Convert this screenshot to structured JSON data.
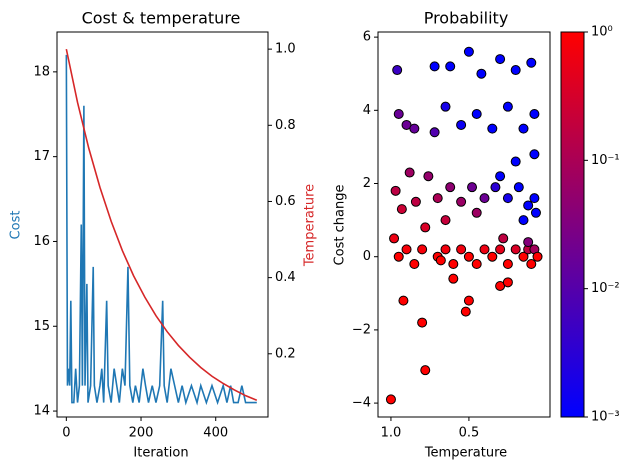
{
  "chart_data": [
    {
      "type": "line",
      "title": "Cost & temperature",
      "x_label": "Iteration",
      "y_label": "Cost",
      "y2_label": "Temperature",
      "xlim": [
        -25,
        540
      ],
      "xticks": [
        0,
        200,
        400
      ],
      "ylim": [
        13.93,
        18.47
      ],
      "yticks": [
        14,
        15,
        16,
        17,
        18
      ],
      "y2lim": [
        0.034,
        1.045
      ],
      "y2ticks": [
        0.2,
        0.4,
        0.6,
        0.8,
        {
          "value": 1,
          "label": "1.0"
        }
      ],
      "series": [
        {
          "color": "#1f77b4",
          "x": [
            0,
            3,
            6,
            9,
            12,
            15,
            20,
            25,
            30,
            35,
            40,
            43,
            47,
            50,
            55,
            58,
            65,
            72,
            75,
            82,
            90,
            95,
            100,
            108,
            112,
            120,
            128,
            135,
            142,
            150,
            157,
            165,
            170,
            178,
            185,
            195,
            205,
            212,
            220,
            230,
            240,
            250,
            258,
            262,
            270,
            280,
            290,
            300,
            310,
            320,
            335,
            350,
            360,
            375,
            390,
            405,
            420,
            430,
            440,
            448,
            460,
            470,
            480,
            510
          ],
          "values": [
            18.2,
            14.3,
            14.5,
            14.3,
            15.3,
            14.1,
            14.1,
            14.5,
            14.1,
            14.3,
            16.2,
            14.3,
            17.6,
            14.3,
            15.5,
            14.1,
            14.3,
            15.7,
            14.3,
            14.1,
            14.3,
            14.5,
            14.1,
            15.3,
            14.3,
            14.1,
            14.5,
            14.3,
            14.1,
            14.5,
            14.3,
            15.7,
            14.3,
            14.1,
            14.3,
            14.1,
            14.5,
            14.3,
            14.1,
            14.3,
            14.1,
            14.3,
            15.3,
            14.3,
            14.1,
            14.5,
            14.3,
            14.1,
            14.3,
            14.1,
            14.3,
            14.1,
            14.3,
            14.1,
            14.3,
            14.1,
            14.3,
            14.1,
            14.3,
            14.1,
            14.1,
            14.3,
            14.1,
            14.1
          ]
        },
        {
          "color": "#d62728",
          "axis": "y2",
          "x": [
            0,
            30,
            60,
            90,
            120,
            150,
            180,
            210,
            240,
            270,
            300,
            330,
            360,
            390,
            420,
            450,
            480,
            510
          ],
          "values": [
            1.0,
            0.86,
            0.74,
            0.637,
            0.548,
            0.471,
            0.405,
            0.349,
            0.3,
            0.258,
            0.222,
            0.191,
            0.164,
            0.141,
            0.122,
            0.105,
            0.09,
            0.078
          ]
        }
      ]
    },
    {
      "type": "scatter",
      "title": "Probability",
      "x_label": "Temperature",
      "y_label": "Cost change",
      "xlim": [
        1.083,
        -0.02
      ],
      "xticks": [
        {
          "value": 1,
          "label": "1.0"
        },
        0.5
      ],
      "ylim": [
        -4.38,
        6.14
      ],
      "yticks": [
        {
          "value": -4,
          "label": "−4"
        },
        {
          "value": -2,
          "label": "−2"
        },
        0,
        2,
        4,
        6
      ],
      "edgecolor": "#000000",
      "colormap": [
        "#0000ff",
        "#ff0000"
      ],
      "color_scale": "log",
      "clim": [
        0.001,
        1
      ],
      "colorbar_ticks": [
        {
          "value": 1,
          "label": "10⁰"
        },
        {
          "value": 0.1,
          "label": "10⁻¹"
        },
        {
          "value": 0.01,
          "label": "10⁻²"
        },
        {
          "value": 0.001,
          "label": "10⁻³"
        }
      ],
      "x": [
        1.0,
        0.78,
        0.8,
        0.92,
        0.5,
        0.52,
        0.6,
        0.3,
        0.25,
        0.98,
        0.95,
        0.9,
        0.85,
        0.8,
        0.7,
        0.65,
        0.6,
        0.55,
        0.5,
        0.45,
        0.4,
        0.35,
        0.3,
        0.25,
        0.2,
        0.15,
        0.12,
        0.1,
        0.08,
        0.06,
        0.97,
        0.93,
        0.88,
        0.84,
        0.76,
        0.7,
        0.62,
        0.55,
        0.48,
        0.4,
        0.33,
        0.25,
        0.18,
        0.12,
        0.08,
        0.07,
        0.95,
        0.9,
        0.85,
        0.72,
        0.65,
        0.55,
        0.45,
        0.35,
        0.25,
        0.15,
        0.08,
        0.96,
        0.72,
        0.62,
        0.5,
        0.42,
        0.3,
        0.2,
        0.1,
        0.08,
        0.2,
        0.3,
        0.15,
        0.45,
        0.65,
        0.78,
        0.28,
        0.12,
        0.68
      ],
      "values": [
        -3.9,
        -3.1,
        -1.8,
        -1.2,
        -1.2,
        -1.5,
        -0.6,
        -0.8,
        -0.7,
        0.5,
        0.0,
        0.2,
        -0.2,
        0.2,
        0.0,
        0.2,
        -0.2,
        0.2,
        0.0,
        -0.2,
        0.2,
        0.0,
        0.2,
        -0.2,
        0.2,
        0.0,
        0.2,
        -0.2,
        0.2,
        0.0,
        1.8,
        1.3,
        2.3,
        1.5,
        2.2,
        1.6,
        1.9,
        1.5,
        1.9,
        1.6,
        1.9,
        1.6,
        1.9,
        1.4,
        1.6,
        1.2,
        3.9,
        3.6,
        3.5,
        3.4,
        4.1,
        3.6,
        3.9,
        3.5,
        4.1,
        3.5,
        3.9,
        5.1,
        5.2,
        5.2,
        5.6,
        5.0,
        5.4,
        5.1,
        5.3,
        2.8,
        2.6,
        2.2,
        1.0,
        1.2,
        1.0,
        0.8,
        0.5,
        0.4,
        -0.1
      ],
      "color_values": [
        1,
        1,
        1,
        1,
        1,
        1,
        1,
        1,
        1,
        0.61,
        1,
        0.8,
        1,
        0.78,
        1,
        0.73,
        1,
        0.69,
        1,
        1,
        0.61,
        1,
        0.51,
        1,
        0.37,
        1,
        0.19,
        1,
        0.082,
        1,
        0.165,
        0.247,
        0.073,
        0.168,
        0.055,
        0.102,
        0.047,
        0.065,
        0.019,
        0.018,
        0.0032,
        0.0017,
        0.001,
        0.001,
        0.001,
        0.001,
        0.017,
        0.018,
        0.016,
        0.009,
        0.0018,
        0.0014,
        0.001,
        0.001,
        0.001,
        0.001,
        0.001,
        0.005,
        0.001,
        0.001,
        0.001,
        0.001,
        0.001,
        0.001,
        0.001,
        0.001,
        0.001,
        0.001,
        0.001,
        0.07,
        0.21,
        0.36,
        0.17,
        0.036,
        1
      ]
    }
  ]
}
